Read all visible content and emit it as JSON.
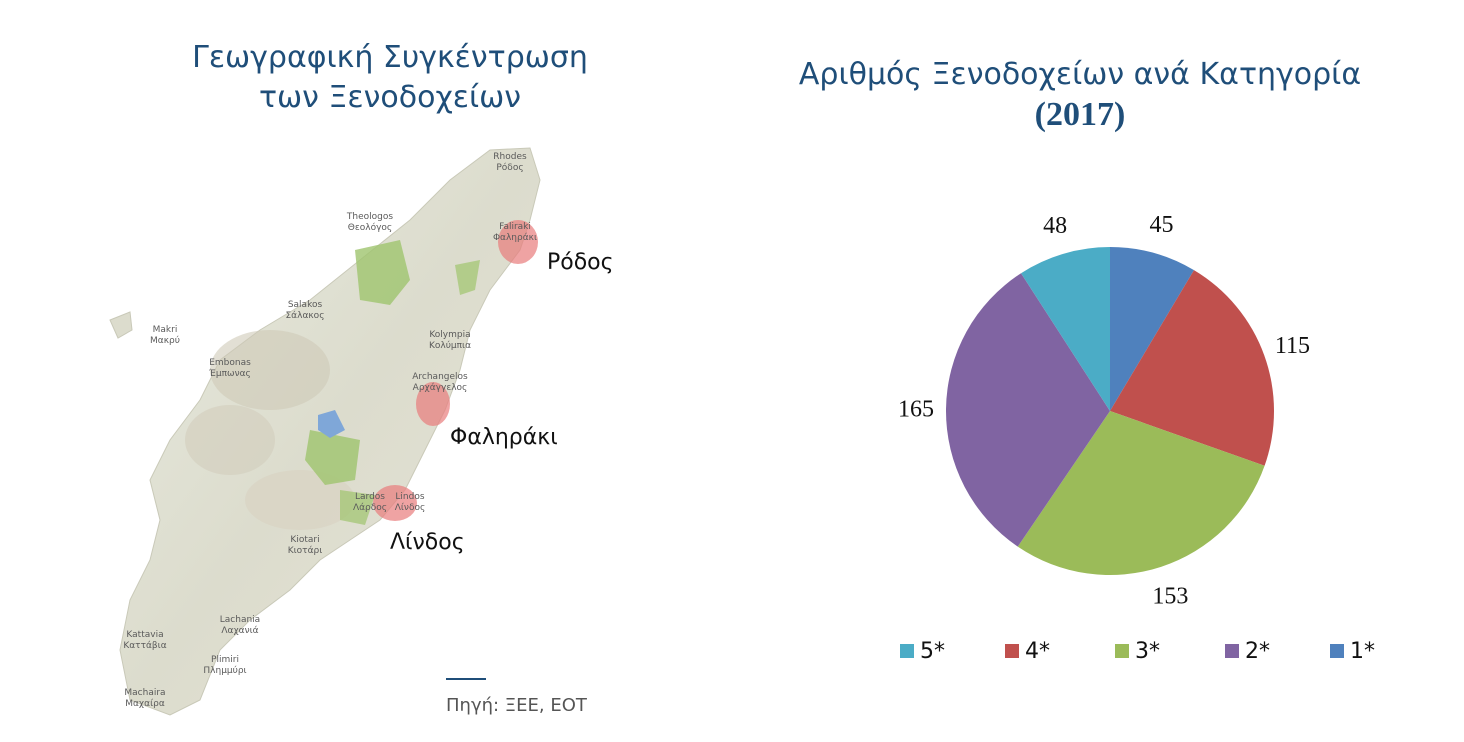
{
  "map": {
    "title_line1": "Γεωγραφική Συγκέντρωση",
    "title_line2": "των Ξενοδοχείων",
    "cities": [
      "Ρόδος",
      "Φαληράκι",
      "Λίνδος"
    ],
    "map_texts": {
      "rhodes": "Rhodes\nΡόδος",
      "theologos": "Theologos\nΘεολόγος",
      "faliraki": "Faliraki\nΦαληράκι",
      "salakos": "Salakos\nΣάλακος",
      "makri": "Makri\nΜακρύ",
      "emponas": "Embonas\nΈμπωνας",
      "kolympia": "Kolympia\nΚολύμπια",
      "archangelos": "Archangelos\nΑρχάγγελος",
      "lardos": "Lardos\nΛάρδος",
      "lindos": "Lindos\nΛίνδος",
      "kiotari": "Kiotari\nΚιοτάρι",
      "lachania": "Lachania\nΛαχανιά",
      "kattavia": "Kattavia\nΚαττάβια",
      "plimmiri": "Plimiri\nΠλημμύρι",
      "messanagros": "Machaira\nΜαχαίρα"
    },
    "source": "Πηγή: ΞΕΕ, ΕΟΤ"
  },
  "chart_title": {
    "line1": "Αριθμός Ξενοδοχείων ανά Κατηγορία",
    "year": "(2017)"
  },
  "colors": {
    "title": "#1f4e79",
    "c1": "#4f81bd",
    "c4": "#c0504d",
    "c3": "#9bbb59",
    "c2": "#8064a2",
    "c5": "#4bacc6"
  },
  "chart_data": {
    "type": "pie",
    "title": "Αριθμός Ξενοδοχείων ανά Κατηγορία (2017)",
    "start_angle_deg": 0,
    "direction": "clockwise",
    "slices": [
      {
        "label": "1*",
        "value": 45,
        "color": "#4f81bd"
      },
      {
        "label": "4*",
        "value": 115,
        "color": "#c0504d"
      },
      {
        "label": "3*",
        "value": 153,
        "color": "#9bbb59"
      },
      {
        "label": "2*",
        "value": 165,
        "color": "#8064a2"
      },
      {
        "label": "5*",
        "value": 48,
        "color": "#4bacc6"
      }
    ],
    "legend_order": [
      "5*",
      "4*",
      "3*",
      "2*",
      "1*"
    ],
    "legend_position": "bottom"
  }
}
